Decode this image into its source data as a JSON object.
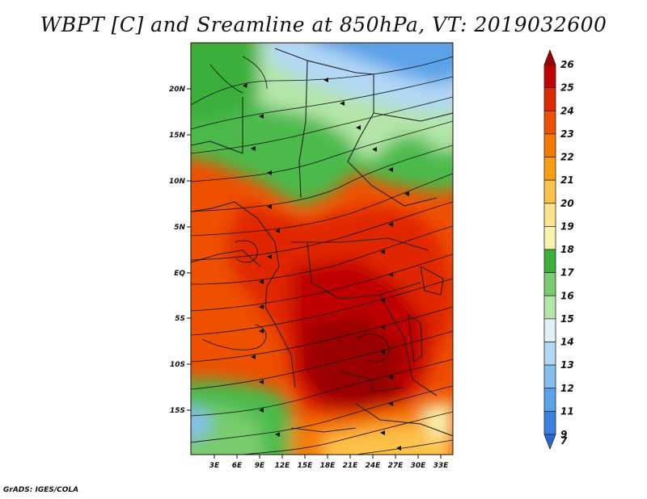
{
  "title": "WBPT [C] and Sreamline at 850hPa, VT: 2019032600",
  "credit": "GrADS: IGES/COLA",
  "map": {
    "lat_labels": [
      "20N",
      "15N",
      "10N",
      "5N",
      "EQ",
      "5S",
      "10S",
      "15S"
    ],
    "lon_labels": [
      "3E",
      "6E",
      "9E",
      "12E",
      "15E",
      "18E",
      "21E",
      "24E",
      "27E",
      "30E",
      "33E"
    ]
  },
  "colorbar": {
    "levels": [
      "26",
      "25",
      "24",
      "23",
      "22",
      "21",
      "20",
      "19",
      "18",
      "17",
      "16",
      "15",
      "14",
      "13",
      "12",
      "11",
      "9",
      "7"
    ],
    "colors": [
      "#9a0000",
      "#c00000",
      "#e02800",
      "#ee5000",
      "#f57a00",
      "#fb9e0e",
      "#fdc24a",
      "#fde48c",
      "#f7f4b0",
      "#3aaf3a",
      "#78cc6e",
      "#b4e6a8",
      "#e0f4f8",
      "#b2d8f6",
      "#86bef0",
      "#5aa2ea",
      "#3a80e0",
      "#2566d2"
    ]
  }
}
